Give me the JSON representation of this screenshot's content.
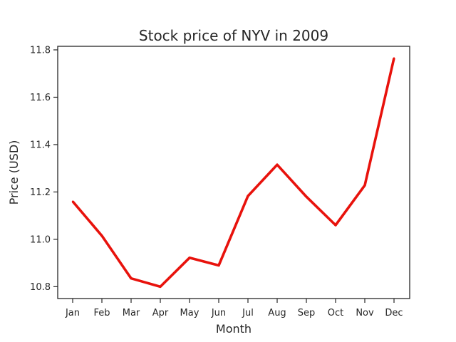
{
  "chart_data": {
    "type": "line",
    "title": "Stock price of NYV in 2009",
    "xlabel": "Month",
    "ylabel": "Price (USD)",
    "categories": [
      "Jan",
      "Feb",
      "Mar",
      "Apr",
      "May",
      "Jun",
      "Jul",
      "Aug",
      "Sep",
      "Oct",
      "Nov",
      "Dec"
    ],
    "series": [
      {
        "values": [
          11.16,
          11.015,
          10.835,
          10.8,
          10.922,
          10.89,
          11.183,
          11.315,
          11.18,
          11.06,
          11.228,
          11.765
        ],
        "color": "#e8120c"
      }
    ],
    "ylim": [
      10.75,
      11.815
    ],
    "yticks": [
      10.8,
      11.0,
      11.2,
      11.4,
      11.6,
      11.8
    ],
    "ytick_labels": [
      "10.8",
      "11.0",
      "11.2",
      "11.4",
      "11.6",
      "11.8"
    ],
    "grid": false,
    "legend": "none"
  }
}
